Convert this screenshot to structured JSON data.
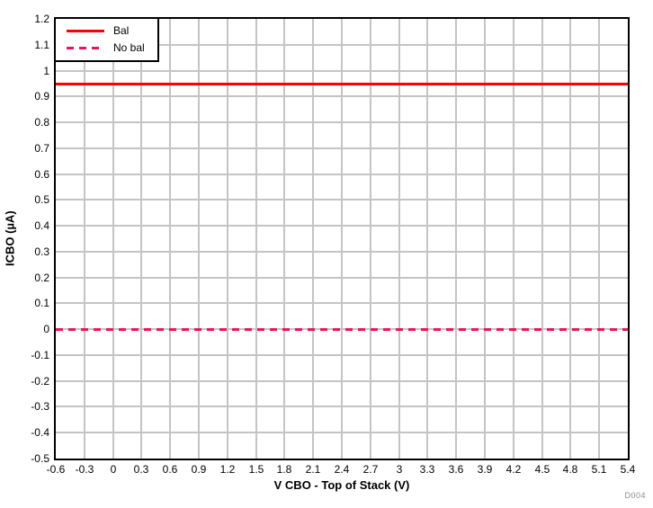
{
  "chart_data": {
    "type": "line",
    "title": "",
    "xlabel": "V CBO - Top of Stack (V)",
    "ylabel": "ICBO (µA)",
    "xlim": [
      -0.6,
      5.4
    ],
    "ylim": [
      -0.5,
      1.2
    ],
    "grid": true,
    "legend_position": "top-left",
    "xticks": [
      -0.6,
      -0.3,
      0,
      0.3,
      0.6,
      0.9,
      1.2,
      1.5,
      1.8,
      2.1,
      2.4,
      2.7,
      3,
      3.3,
      3.6,
      3.9,
      4.2,
      4.5,
      4.8,
      5.1,
      5.4
    ],
    "xtick_labels": [
      "-0.6",
      "-0.3",
      "0",
      "0.3",
      "0.6",
      "0.9",
      "1.2",
      "1.5",
      "1.8",
      "2.1",
      "2.4",
      "2.7",
      "3",
      "3.3",
      "3.6",
      "3.9",
      "4.2",
      "4.5",
      "4.8",
      "5.1",
      "5.4"
    ],
    "yticks": [
      1.2,
      1.1,
      1,
      0.9,
      0.8,
      0.7,
      0.6,
      0.5,
      0.4,
      0.3,
      0.2,
      0.1,
      0,
      -0.1,
      -0.2,
      -0.3,
      -0.4,
      -0.5
    ],
    "ytick_labels": [
      "1.2",
      "1.1",
      "1",
      "0.9",
      "0.8",
      "0.7",
      "0.6",
      "0.5",
      "0.4",
      "0.3",
      "0.2",
      "0.1",
      "0",
      "-0.1",
      "-0.2",
      "-0.3",
      "-0.4",
      "-0.5"
    ],
    "series": [
      {
        "name": "Bal",
        "style": "solid",
        "color": "#ff0000",
        "x": [
          -0.6,
          5.4
        ],
        "y": [
          0.95,
          0.95
        ]
      },
      {
        "name": "No bal",
        "style": "dashed",
        "color": "#ed145b",
        "x": [
          -0.6,
          5.4
        ],
        "y": [
          0,
          0
        ]
      }
    ],
    "watermark": "D004"
  },
  "colors": {
    "grid": "#c4c4c4",
    "axis_border": "#000000",
    "watermark": "#8c8c8c",
    "background": "#ffffff"
  }
}
